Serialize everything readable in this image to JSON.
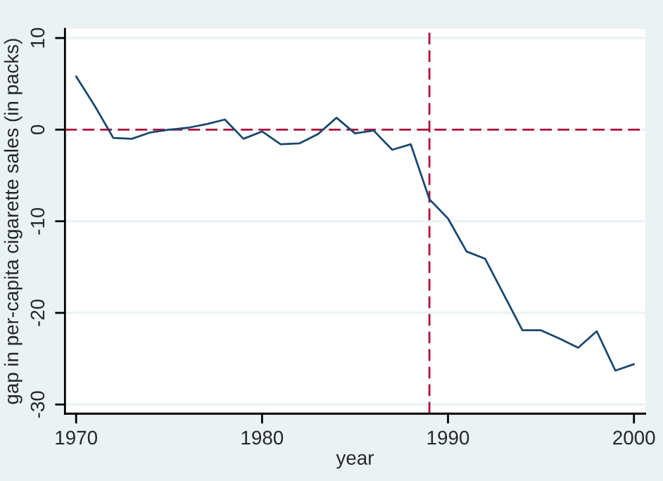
{
  "chart_data": {
    "type": "line",
    "xlabel": "year",
    "ylabel": "gap in per-capita cigarette sales (in packs)",
    "x": [
      1970,
      1971,
      1972,
      1973,
      1974,
      1975,
      1976,
      1977,
      1978,
      1979,
      1980,
      1981,
      1982,
      1983,
      1984,
      1985,
      1986,
      1987,
      1988,
      1989,
      1990,
      1991,
      1992,
      1993,
      1994,
      1995,
      1996,
      1997,
      1998,
      1999,
      2000
    ],
    "series": [
      {
        "color": "#1a476f",
        "values": [
          5.8,
          2.6,
          -0.9,
          -1.0,
          -0.3,
          0.0,
          0.2,
          0.6,
          1.1,
          -1.0,
          -0.2,
          -1.6,
          -1.5,
          -0.5,
          1.3,
          -0.4,
          -0.1,
          -2.2,
          -1.6,
          -7.6,
          -9.7,
          -13.3,
          -14.1,
          -18.0,
          -21.9,
          -21.9,
          -22.8,
          -23.8,
          -22.0,
          -26.3,
          -25.6
        ]
      }
    ],
    "xlim": [
      1969.4,
      2000.6
    ],
    "ylim": [
      -31,
      11
    ],
    "xticks": [
      1970,
      1980,
      1990,
      2000
    ],
    "yticks": [
      -30,
      -20,
      -10,
      0,
      10
    ],
    "grid": "y",
    "legend": false,
    "marker": "none",
    "line_style": "solid",
    "ref_lines": [
      {
        "axis": "y",
        "value": 0,
        "color": "#b0103a",
        "line_style": "dashed"
      },
      {
        "axis": "x",
        "value": 1989,
        "color": "#b0103a",
        "line_style": "dashed"
      }
    ]
  }
}
